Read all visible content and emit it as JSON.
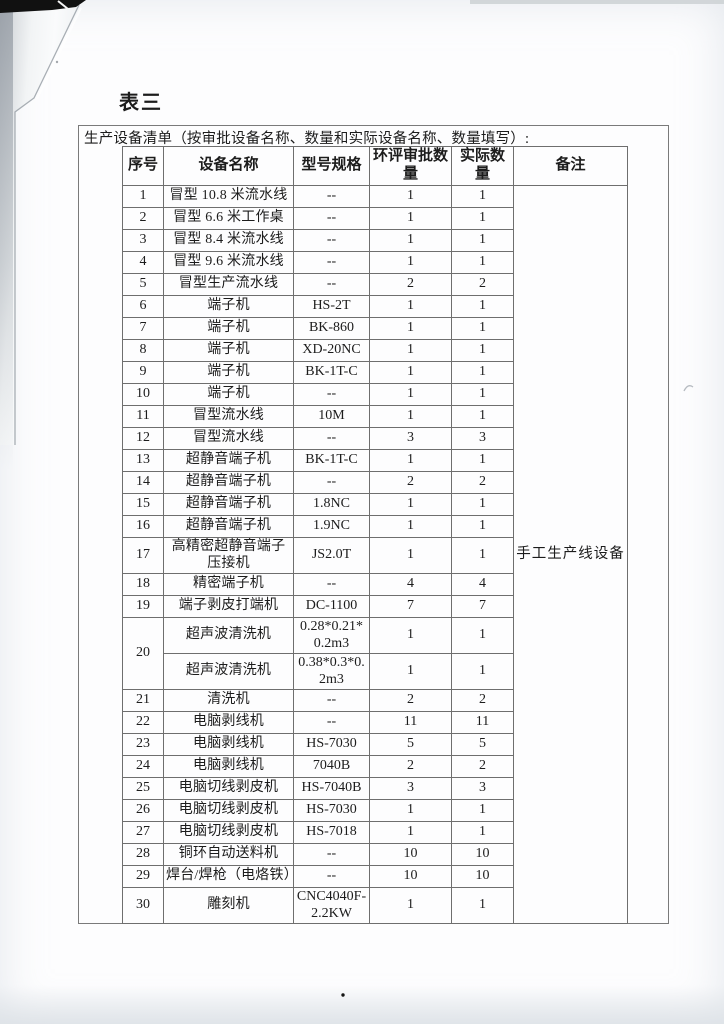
{
  "page": {
    "title": "表三",
    "caption": "生产设备清单（按审批设备名称、数量和实际设备名称、数量填写）:",
    "ink_color": "#1c1c1c",
    "line_color": "#6e6e6e"
  },
  "table": {
    "columns": [
      "序号",
      "设备名称",
      "型号规格",
      "环评审批数量",
      "实际数量",
      "备注"
    ],
    "remark": "手工生产线设备",
    "rows": [
      {
        "no": "1",
        "name": "冒型 10.8 米流水线",
        "model": "--",
        "approved": "1",
        "actual": "1"
      },
      {
        "no": "2",
        "name": "冒型 6.6 米工作桌",
        "model": "--",
        "approved": "1",
        "actual": "1"
      },
      {
        "no": "3",
        "name": "冒型 8.4 米流水线",
        "model": "--",
        "approved": "1",
        "actual": "1"
      },
      {
        "no": "4",
        "name": "冒型 9.6 米流水线",
        "model": "--",
        "approved": "1",
        "actual": "1"
      },
      {
        "no": "5",
        "name": "冒型生产流水线",
        "model": "--",
        "approved": "2",
        "actual": "2"
      },
      {
        "no": "6",
        "name": "端子机",
        "model": "HS-2T",
        "approved": "1",
        "actual": "1"
      },
      {
        "no": "7",
        "name": "端子机",
        "model": "BK-860",
        "approved": "1",
        "actual": "1"
      },
      {
        "no": "8",
        "name": "端子机",
        "model": "XD-20NC",
        "approved": "1",
        "actual": "1"
      },
      {
        "no": "9",
        "name": "端子机",
        "model": "BK-1T-C",
        "approved": "1",
        "actual": "1"
      },
      {
        "no": "10",
        "name": "端子机",
        "model": "--",
        "approved": "1",
        "actual": "1"
      },
      {
        "no": "11",
        "name": "冒型流水线",
        "model": "10M",
        "approved": "1",
        "actual": "1"
      },
      {
        "no": "12",
        "name": "冒型流水线",
        "model": "--",
        "approved": "3",
        "actual": "3"
      },
      {
        "no": "13",
        "name": "超静音端子机",
        "model": "BK-1T-C",
        "approved": "1",
        "actual": "1"
      },
      {
        "no": "14",
        "name": "超静音端子机",
        "model": "--",
        "approved": "2",
        "actual": "2"
      },
      {
        "no": "15",
        "name": "超静音端子机",
        "model": "1.8NC",
        "approved": "1",
        "actual": "1"
      },
      {
        "no": "16",
        "name": "超静音端子机",
        "model": "1.9NC",
        "approved": "1",
        "actual": "1"
      },
      {
        "no": "17",
        "name": "高精密超静音端子压接机",
        "model": "JS2.0T",
        "approved": "1",
        "actual": "1",
        "tall": true
      },
      {
        "no": "18",
        "name": "精密端子机",
        "model": "--",
        "approved": "4",
        "actual": "4"
      },
      {
        "no": "19",
        "name": "端子剥皮打端机",
        "model": "DC-1100",
        "approved": "7",
        "actual": "7"
      },
      {
        "no": "20",
        "no_span": 2,
        "name": "超声波清洗机",
        "model": "0.28*0.21*0.2m3",
        "approved": "1",
        "actual": "1",
        "tall": true
      },
      {
        "no": null,
        "name": "超声波清洗机",
        "model": "0.38*0.3*0.2m3",
        "approved": "1",
        "actual": "1",
        "tall": true
      },
      {
        "no": "21",
        "name": "清洗机",
        "model": "--",
        "approved": "2",
        "actual": "2"
      },
      {
        "no": "22",
        "name": "电脑剥线机",
        "model": "--",
        "approved": "11",
        "actual": "11"
      },
      {
        "no": "23",
        "name": "电脑剥线机",
        "model": "HS-7030",
        "approved": "5",
        "actual": "5"
      },
      {
        "no": "24",
        "name": "电脑剥线机",
        "model": "7040B",
        "approved": "2",
        "actual": "2"
      },
      {
        "no": "25",
        "name": "电脑切线剥皮机",
        "model": "HS-7040B",
        "approved": "3",
        "actual": "3"
      },
      {
        "no": "26",
        "name": "电脑切线剥皮机",
        "model": "HS-7030",
        "approved": "1",
        "actual": "1"
      },
      {
        "no": "27",
        "name": "电脑切线剥皮机",
        "model": "HS-7018",
        "approved": "1",
        "actual": "1"
      },
      {
        "no": "28",
        "name": "铜环自动送料机",
        "model": "--",
        "approved": "10",
        "actual": "10"
      },
      {
        "no": "29",
        "name": "焊台/焊枪（电烙铁）",
        "model": "--",
        "approved": "10",
        "actual": "10"
      },
      {
        "no": "30",
        "name": "雕刻机",
        "model": "CNC4040F-2.2KW",
        "approved": "1",
        "actual": "1",
        "tall": true
      }
    ]
  }
}
